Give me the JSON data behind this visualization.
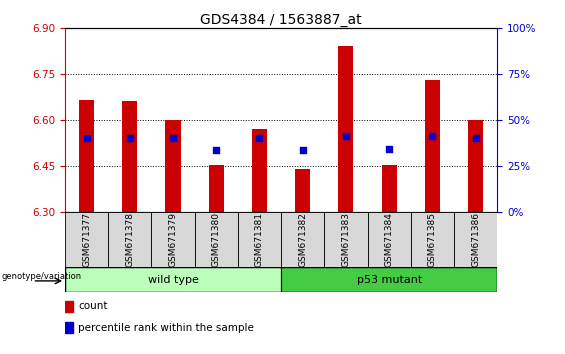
{
  "title": "GDS4384 / 1563887_at",
  "samples": [
    "GSM671377",
    "GSM671378",
    "GSM671379",
    "GSM671380",
    "GSM671381",
    "GSM671382",
    "GSM671383",
    "GSM671384",
    "GSM671385",
    "GSM671386"
  ],
  "bar_top": [
    6.665,
    6.663,
    6.6,
    6.453,
    6.573,
    6.443,
    6.843,
    6.453,
    6.733,
    6.6
  ],
  "bar_bottom": 6.3,
  "blue_y": [
    6.543,
    6.543,
    6.543,
    6.505,
    6.543,
    6.505,
    6.548,
    6.508,
    6.548,
    6.543
  ],
  "ylim_left": [
    6.3,
    6.9
  ],
  "ylim_right": [
    0,
    100
  ],
  "yticks_left": [
    6.3,
    6.45,
    6.6,
    6.75,
    6.9
  ],
  "yticks_right": [
    0,
    25,
    50,
    75,
    100
  ],
  "bar_color": "#cc0000",
  "blue_color": "#0000cc",
  "wild_type_color": "#bbffbb",
  "p53_mutant_color": "#44cc44",
  "wild_type_label": "wild type",
  "p53_mutant_label": "p53 mutant",
  "genotype_label": "genotype/variation",
  "legend_count": "count",
  "legend_percentile": "percentile rank within the sample",
  "grid_linestyle": "dotted",
  "grid_color": "#000000",
  "title_fontsize": 10,
  "tick_fontsize": 7.5,
  "bar_width": 0.35,
  "xtick_bg_color": "#cccccc",
  "xtick_cell_color": "#d8d8d8"
}
